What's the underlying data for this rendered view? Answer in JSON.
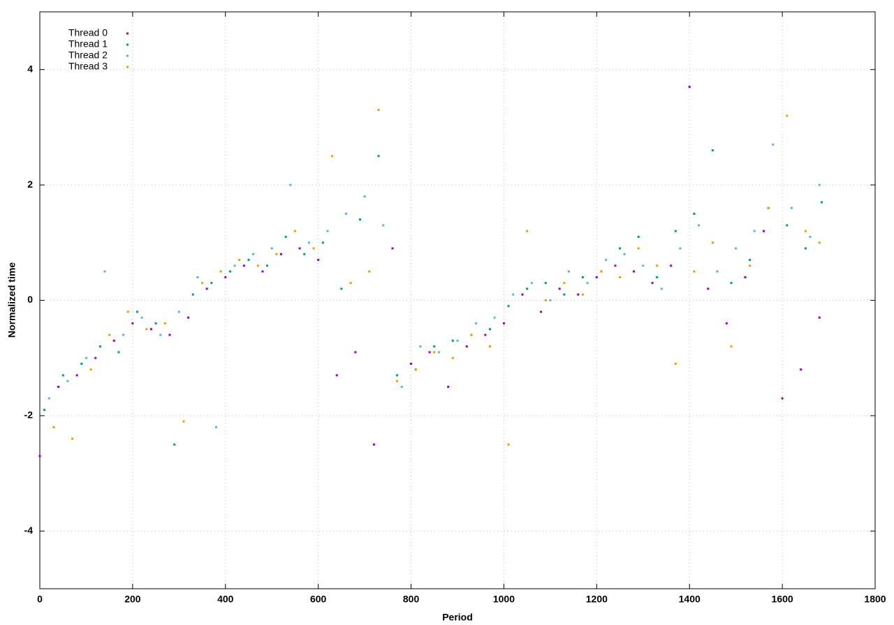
{
  "chart_data": {
    "type": "scatter",
    "x_label": "Period",
    "y_label": "Normalized time",
    "xlim": [
      0,
      1800
    ],
    "ylim": [
      -5,
      5
    ],
    "xticks": [
      0,
      200,
      400,
      600,
      800,
      1000,
      1200,
      1400,
      1600,
      1800
    ],
    "yticks": [
      -4,
      -2,
      0,
      2,
      4
    ],
    "grid": true,
    "legend": "top-left",
    "series": [
      {
        "name": "Thread 0",
        "color": "#9400d3",
        "x": [
          0,
          40,
          80,
          120,
          160,
          200,
          240,
          280,
          320,
          360,
          400,
          440,
          480,
          520,
          560,
          600,
          640,
          680,
          720,
          760,
          800,
          840,
          880,
          920,
          960,
          1000,
          1040,
          1080,
          1120,
          1160,
          1200,
          1240,
          1280,
          1320,
          1360,
          1400,
          1440,
          1480,
          1520,
          1560,
          1600,
          1640,
          1680
        ],
        "values": [
          -2.7,
          -1.5,
          -1.3,
          -1.0,
          -0.7,
          -0.4,
          -0.5,
          -0.6,
          -0.3,
          0.2,
          0.4,
          0.6,
          0.5,
          0.8,
          0.9,
          0.7,
          -1.3,
          -0.9,
          -2.5,
          0.9,
          -1.1,
          -0.9,
          -1.5,
          -0.8,
          -0.6,
          -0.4,
          0.1,
          -0.2,
          0.2,
          0.1,
          0.4,
          0.6,
          0.5,
          0.3,
          0.6,
          3.7,
          0.2,
          -0.4,
          0.4,
          1.2,
          -1.7,
          -1.2,
          -0.3
        ]
      },
      {
        "name": "Thread 1",
        "color": "#009e73",
        "x": [
          10,
          50,
          90,
          130,
          170,
          210,
          250,
          290,
          330,
          370,
          410,
          450,
          490,
          530,
          570,
          610,
          650,
          690,
          730,
          770,
          810,
          850,
          890,
          930,
          970,
          1010,
          1050,
          1090,
          1130,
          1170,
          1210,
          1250,
          1290,
          1330,
          1370,
          1410,
          1450,
          1490,
          1530,
          1570,
          1610,
          1650,
          1685
        ],
        "values": [
          -1.9,
          -1.3,
          -1.1,
          -0.8,
          -0.9,
          -0.2,
          -0.4,
          -2.5,
          0.1,
          0.3,
          0.5,
          0.7,
          0.6,
          1.1,
          0.8,
          1.0,
          0.2,
          1.4,
          2.5,
          -1.3,
          -1.2,
          -0.8,
          -0.7,
          -0.6,
          -0.5,
          -0.1,
          0.2,
          0.3,
          0.1,
          0.4,
          0.5,
          0.9,
          1.1,
          0.4,
          1.2,
          1.5,
          2.6,
          0.3,
          0.7,
          1.6,
          1.3,
          0.9,
          1.7
        ]
      },
      {
        "name": "Thread 2",
        "color": "#56b4e9",
        "x": [
          20,
          60,
          100,
          140,
          180,
          220,
          260,
          300,
          340,
          380,
          420,
          460,
          500,
          540,
          580,
          620,
          660,
          700,
          740,
          780,
          820,
          860,
          900,
          940,
          980,
          1020,
          1060,
          1100,
          1140,
          1180,
          1220,
          1260,
          1300,
          1340,
          1380,
          1420,
          1460,
          1500,
          1540,
          1580,
          1620,
          1660,
          1680
        ],
        "values": [
          -1.7,
          -1.4,
          -1.0,
          0.5,
          -0.6,
          -0.3,
          -0.6,
          -0.2,
          0.4,
          -2.2,
          0.6,
          0.8,
          0.9,
          2.0,
          1.0,
          1.2,
          1.5,
          1.8,
          1.3,
          -1.5,
          -0.8,
          -0.9,
          -0.7,
          -0.4,
          -0.3,
          0.1,
          0.3,
          0.0,
          0.5,
          0.3,
          0.7,
          0.8,
          0.6,
          0.2,
          0.9,
          1.3,
          0.5,
          0.9,
          1.2,
          2.7,
          1.6,
          1.1,
          2.0
        ]
      },
      {
        "name": "Thread 3",
        "color": "#e69f00",
        "x": [
          30,
          70,
          110,
          150,
          190,
          230,
          270,
          310,
          350,
          390,
          430,
          470,
          510,
          550,
          590,
          630,
          670,
          710,
          730,
          770,
          810,
          850,
          890,
          930,
          970,
          1010,
          1050,
          1090,
          1130,
          1170,
          1210,
          1250,
          1290,
          1330,
          1370,
          1410,
          1450,
          1490,
          1530,
          1570,
          1610,
          1650,
          1680
        ],
        "values": [
          -2.2,
          -2.4,
          -1.2,
          -0.6,
          -0.2,
          -0.5,
          -0.4,
          -2.1,
          0.3,
          0.5,
          0.7,
          0.6,
          0.8,
          1.2,
          0.9,
          2.5,
          0.3,
          0.5,
          3.3,
          -1.4,
          -1.2,
          -0.9,
          -1.0,
          -0.6,
          -0.8,
          -2.5,
          1.2,
          0.0,
          0.3,
          0.1,
          0.5,
          0.4,
          0.9,
          0.6,
          -1.1,
          0.5,
          1.0,
          -0.8,
          0.6,
          1.6,
          3.2,
          1.2,
          1.0
        ]
      }
    ]
  }
}
